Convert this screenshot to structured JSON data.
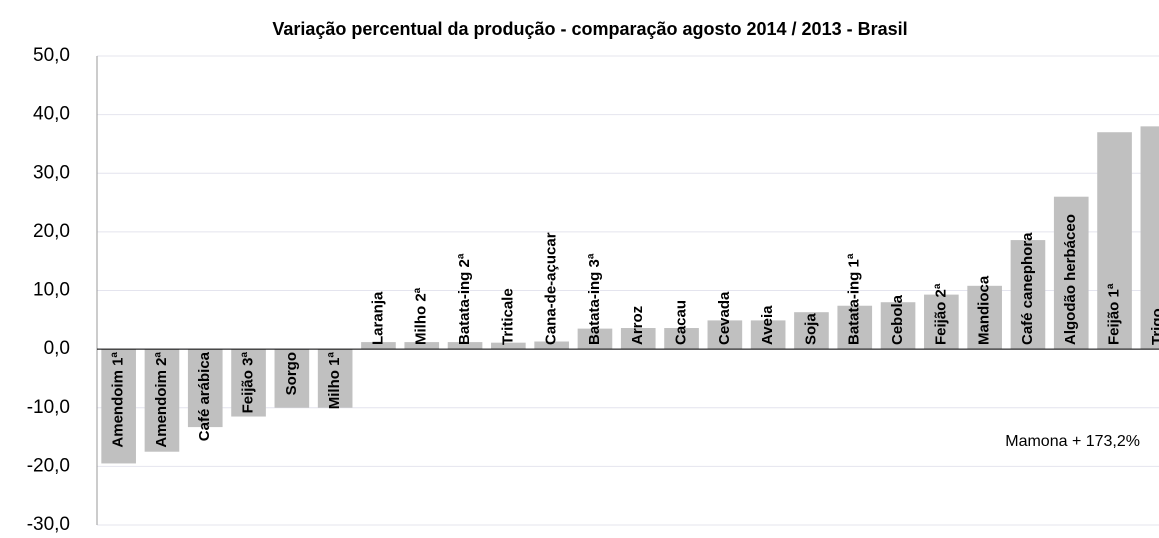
{
  "chart_data": {
    "type": "bar",
    "title": "Variação percentual da produção - comparação agosto 2014 / 2013 - Brasil",
    "categories": [
      "Amendoim 1ª",
      "Amendoim 2ª",
      "Café arábica",
      "Feijão 3ª",
      "Sorgo",
      "Milho 1ª",
      "Laranja",
      "Milho 2ª",
      "Batata-ing 2ª",
      "Triticale",
      "Cana-de-açucar",
      "Batata-ing 3ª",
      "Arroz",
      "Cacau",
      "Cevada",
      "Aveia",
      "Soja",
      "Batata-ing 1ª",
      "Cebola",
      "Feijão 2ª",
      "Mandioca",
      "Café canephora",
      "Algodão herbáceo",
      "Feijão 1ª",
      "Trigo"
    ],
    "values": [
      -19.5,
      -17.5,
      -13.3,
      -11.5,
      -10.0,
      -10.0,
      1.2,
      1.2,
      1.2,
      1.1,
      1.3,
      3.5,
      3.6,
      3.6,
      4.9,
      4.9,
      6.3,
      7.4,
      8.0,
      9.3,
      10.8,
      18.6,
      26.0,
      37.0,
      38.0
    ],
    "color": "#c0c0c0",
    "ylim": [
      -30,
      50
    ],
    "yticks": [
      {
        "value": -30,
        "label": "-30,0"
      },
      {
        "value": -20,
        "label": "-20,0"
      },
      {
        "value": -10,
        "label": "-10,0"
      },
      {
        "value": 0,
        "label": "0,0"
      },
      {
        "value": 10,
        "label": "10,0"
      },
      {
        "value": 20,
        "label": "20,0"
      },
      {
        "value": 30,
        "label": "30,0"
      },
      {
        "value": 40,
        "label": "40,0"
      },
      {
        "value": 50,
        "label": "50,0"
      }
    ],
    "grid": true,
    "annotation": "Mamona + 173,2%"
  }
}
